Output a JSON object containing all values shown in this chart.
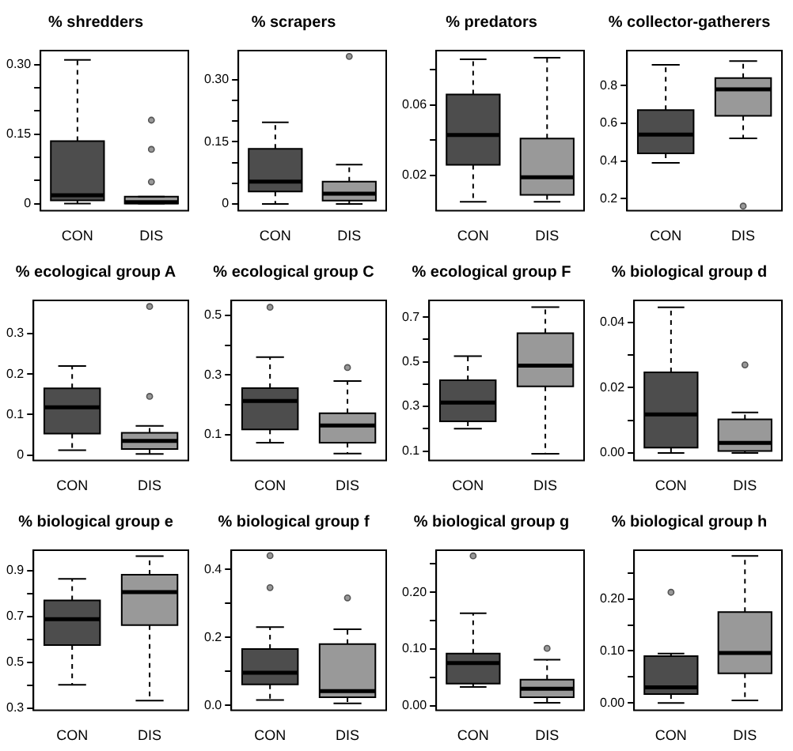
{
  "chart_data": [
    {
      "type": "box",
      "title": "% shredders",
      "categories": [
        "CON",
        "DIS"
      ],
      "colors": [
        "#4d4d4d",
        "#999999"
      ],
      "ylim": [
        -0.015,
        0.33
      ],
      "yticks": [
        0,
        {
          "value": 0.05,
          "label": null
        },
        {
          "value": 0.1,
          "label": null
        },
        {
          "value": 0.15,
          "label": "0.15"
        },
        {
          "value": 0.2,
          "label": null
        },
        {
          "value": 0.25,
          "label": null
        },
        {
          "value": 0.3,
          "label": "0.30"
        }
      ],
      "boxes": [
        {
          "low": 0,
          "q1": 0.007,
          "median": 0.018,
          "q3": 0.135,
          "high": 0.31
        },
        {
          "low": 0,
          "q1": 0,
          "median": 0.003,
          "q3": 0.015,
          "high": 0.015,
          "outliers": [
            0.18,
            0.117,
            0.047
          ]
        }
      ]
    },
    {
      "type": "box",
      "title": "% scrapers",
      "categories": [
        "CON",
        "DIS"
      ],
      "colors": [
        "#4d4d4d",
        "#999999"
      ],
      "ylim": [
        -0.016,
        0.37
      ],
      "yticks": [
        0,
        {
          "value": 0.05,
          "label": null
        },
        {
          "value": 0.1,
          "label": null
        },
        {
          "value": 0.15,
          "label": "0.15"
        },
        {
          "value": 0.2,
          "label": null
        },
        {
          "value": 0.25,
          "label": null
        },
        {
          "value": 0.3,
          "label": "0.30"
        }
      ],
      "boxes": [
        {
          "low": 0,
          "q1": 0.03,
          "median": 0.054,
          "q3": 0.133,
          "high": 0.197
        },
        {
          "low": 0,
          "q1": 0.008,
          "median": 0.025,
          "q3": 0.054,
          "high": 0.095,
          "outliers": [
            0.356
          ]
        }
      ]
    },
    {
      "type": "box",
      "title": "% predators",
      "categories": [
        "CON",
        "DIS"
      ],
      "colors": [
        "#4d4d4d",
        "#999999"
      ],
      "ylim": [
        0,
        0.091
      ],
      "yticks": [
        0.02,
        {
          "value": 0.04,
          "label": null
        },
        0.06,
        {
          "value": 0.08,
          "label": null
        }
      ],
      "boxes": [
        {
          "low": 0.005,
          "q1": 0.026,
          "median": 0.043,
          "q3": 0.066,
          "high": 0.086
        },
        {
          "low": 0.005,
          "q1": 0.009,
          "median": 0.019,
          "q3": 0.041,
          "high": 0.087
        }
      ]
    },
    {
      "type": "box",
      "title": "% collector-gatherers",
      "categories": [
        "CON",
        "DIS"
      ],
      "colors": [
        "#4d4d4d",
        "#999999"
      ],
      "ylim": [
        0.136,
        0.986
      ],
      "yticks": [
        0.2,
        0.4,
        0.6,
        0.8
      ],
      "boxes": [
        {
          "low": 0.39,
          "q1": 0.44,
          "median": 0.54,
          "q3": 0.67,
          "high": 0.91
        },
        {
          "low": 0.52,
          "q1": 0.64,
          "median": 0.78,
          "q3": 0.84,
          "high": 0.93,
          "outliers": [
            0.16
          ]
        }
      ]
    },
    {
      "type": "box",
      "title": "% ecological group A",
      "categories": [
        "CON",
        "DIS"
      ],
      "colors": [
        "#4d4d4d",
        "#999999"
      ],
      "ylim": [
        -0.013,
        0.382
      ],
      "yticks": [
        0,
        0.1,
        0.2,
        0.3
      ],
      "boxes": [
        {
          "low": 0.012,
          "q1": 0.053,
          "median": 0.118,
          "q3": 0.165,
          "high": 0.22
        },
        {
          "low": 0.003,
          "q1": 0.015,
          "median": 0.035,
          "q3": 0.055,
          "high": 0.072,
          "outliers": [
            0.367,
            0.145
          ]
        }
      ]
    },
    {
      "type": "box",
      "title": "% ecological group C",
      "categories": [
        "CON",
        "DIS"
      ],
      "colors": [
        "#4d4d4d",
        "#999999"
      ],
      "ylim": [
        0.014,
        0.55
      ],
      "yticks": [
        0.1,
        {
          "value": 0.2,
          "label": null
        },
        0.3,
        {
          "value": 0.4,
          "label": null
        },
        0.5
      ],
      "boxes": [
        {
          "low": 0.073,
          "q1": 0.118,
          "median": 0.213,
          "q3": 0.256,
          "high": 0.36,
          "outliers": [
            0.527
          ]
        },
        {
          "low": 0.037,
          "q1": 0.073,
          "median": 0.131,
          "q3": 0.172,
          "high": 0.28,
          "outliers": [
            0.325
          ]
        }
      ]
    },
    {
      "type": "box",
      "title": "% ecological group F",
      "categories": [
        "CON",
        "DIS"
      ],
      "colors": [
        "#4d4d4d",
        "#999999"
      ],
      "ylim": [
        0.058,
        0.775
      ],
      "yticks": [
        0.1,
        {
          "value": 0.2,
          "label": null
        },
        0.3,
        {
          "value": 0.4,
          "label": null
        },
        0.5,
        {
          "value": 0.6,
          "label": null
        },
        0.7
      ],
      "boxes": [
        {
          "low": 0.2,
          "q1": 0.233,
          "median": 0.317,
          "q3": 0.417,
          "high": 0.525
        },
        {
          "low": 0.088,
          "q1": 0.39,
          "median": 0.483,
          "q3": 0.628,
          "high": 0.745
        }
      ]
    },
    {
      "type": "box",
      "title": "% biological group d",
      "categories": [
        "CON",
        "DIS"
      ],
      "colors": [
        "#4d4d4d",
        "#999999"
      ],
      "ylim": [
        -0.0023,
        0.0468
      ],
      "yticks": [
        {
          "value": 0,
          "label": "0.00"
        },
        {
          "value": 0.01,
          "label": null
        },
        {
          "value": 0.02,
          "label": "0.02"
        },
        {
          "value": 0.03,
          "label": null
        },
        {
          "value": 0.04,
          "label": "0.04"
        }
      ],
      "boxes": [
        {
          "low": 0,
          "q1": 0.0016,
          "median": 0.0118,
          "q3": 0.0247,
          "high": 0.0447
        },
        {
          "low": 0,
          "q1": 0.0006,
          "median": 0.0031,
          "q3": 0.0103,
          "high": 0.0124,
          "outliers": [
            0.027
          ]
        }
      ]
    },
    {
      "type": "box",
      "title": "% biological group e",
      "categories": [
        "CON",
        "DIS"
      ],
      "colors": [
        "#4d4d4d",
        "#999999"
      ],
      "ylim": [
        0.29,
        0.99
      ],
      "yticks": [
        0.3,
        {
          "value": 0.4,
          "label": null
        },
        0.5,
        {
          "value": 0.6,
          "label": null
        },
        0.7,
        {
          "value": 0.8,
          "label": null
        },
        0.9
      ],
      "boxes": [
        {
          "low": 0.401,
          "q1": 0.575,
          "median": 0.688,
          "q3": 0.77,
          "high": 0.865
        },
        {
          "low": 0.332,
          "q1": 0.662,
          "median": 0.807,
          "q3": 0.883,
          "high": 0.964
        }
      ]
    },
    {
      "type": "box",
      "title": "% biological group f",
      "categories": [
        "CON",
        "DIS"
      ],
      "colors": [
        "#4d4d4d",
        "#999999"
      ],
      "ylim": [
        -0.014,
        0.456
      ],
      "yticks": [
        {
          "value": 0,
          "label": "0.0"
        },
        {
          "value": 0.1,
          "label": null
        },
        0.2,
        {
          "value": 0.3,
          "label": null
        },
        0.4
      ],
      "boxes": [
        {
          "low": 0.016,
          "q1": 0.062,
          "median": 0.096,
          "q3": 0.166,
          "high": 0.23,
          "outliers": [
            0.44,
            0.346
          ]
        },
        {
          "low": 0.006,
          "q1": 0.024,
          "median": 0.042,
          "q3": 0.18,
          "high": 0.224,
          "outliers": [
            0.316
          ]
        }
      ]
    },
    {
      "type": "box",
      "title": "% biological group g",
      "categories": [
        "CON",
        "DIS"
      ],
      "colors": [
        "#4d4d4d",
        "#999999"
      ],
      "ylim": [
        -0.008,
        0.274
      ],
      "yticks": [
        {
          "value": 0,
          "label": "0.00"
        },
        {
          "value": 0.05,
          "label": null
        },
        {
          "value": 0.1,
          "label": "0.10"
        },
        {
          "value": 0.15,
          "label": null
        },
        {
          "value": 0.2,
          "label": "0.20"
        },
        {
          "value": 0.25,
          "label": null
        }
      ],
      "boxes": [
        {
          "low": 0.033,
          "q1": 0.039,
          "median": 0.075,
          "q3": 0.092,
          "high": 0.163,
          "outliers": [
            0.264
          ]
        },
        {
          "low": 0.005,
          "q1": 0.015,
          "median": 0.03,
          "q3": 0.046,
          "high": 0.081,
          "outliers": [
            0.101
          ]
        }
      ]
    },
    {
      "type": "box",
      "title": "% biological group h",
      "categories": [
        "CON",
        "DIS"
      ],
      "colors": [
        "#4d4d4d",
        "#999999"
      ],
      "ylim": [
        -0.014,
        0.294
      ],
      "yticks": [
        {
          "value": 0,
          "label": "0.00"
        },
        {
          "value": 0.05,
          "label": null
        },
        {
          "value": 0.1,
          "label": "0.10"
        },
        {
          "value": 0.15,
          "label": null
        },
        {
          "value": 0.2,
          "label": "0.20"
        },
        {
          "value": 0.25,
          "label": null
        }
      ],
      "boxes": [
        {
          "low": 0,
          "q1": 0.017,
          "median": 0.03,
          "q3": 0.09,
          "high": 0.095,
          "outliers": [
            0.213
          ]
        },
        {
          "low": 0.005,
          "q1": 0.057,
          "median": 0.096,
          "q3": 0.175,
          "high": 0.283
        }
      ]
    }
  ]
}
